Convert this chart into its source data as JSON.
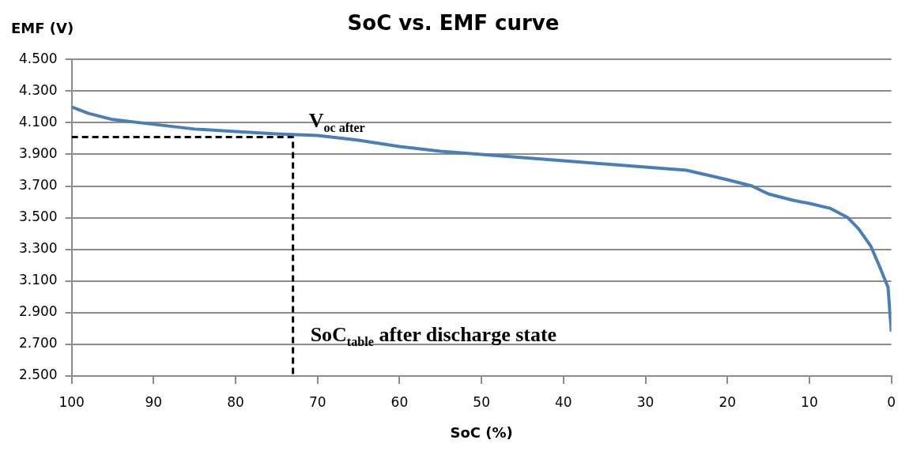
{
  "chart_data": {
    "type": "line",
    "title": "SoC vs. EMF curve",
    "xlabel": "SoC (%)",
    "ylabel": "EMF (V)",
    "xlim": [
      100,
      0
    ],
    "xticks": [
      100,
      90,
      80,
      70,
      60,
      50,
      40,
      30,
      20,
      10,
      0
    ],
    "ylim": [
      2.5,
      4.5
    ],
    "yticks": [
      {
        "value": 2.5,
        "label": "2.500"
      },
      {
        "value": 2.7,
        "label": "2.700"
      },
      {
        "value": 2.9,
        "label": "2.900"
      },
      {
        "value": 3.1,
        "label": "3.100"
      },
      {
        "value": 3.3,
        "label": "3.300"
      },
      {
        "value": 3.5,
        "label": "3.500"
      },
      {
        "value": 3.7,
        "label": "3.700"
      },
      {
        "value": 3.9,
        "label": "3.900"
      },
      {
        "value": 4.1,
        "label": "4.100"
      },
      {
        "value": 4.3,
        "label": "4.300"
      },
      {
        "value": 4.5,
        "label": "4.500"
      }
    ],
    "grid": "y",
    "legend": false,
    "marker": "none",
    "series": [
      {
        "color": "#4a7ebb",
        "line_style": "solid",
        "x": [
          100,
          98,
          95,
          90,
          85,
          80,
          75,
          70,
          65,
          60,
          55,
          50,
          45,
          40,
          35,
          30,
          25,
          20,
          17,
          15,
          12,
          10,
          7.5,
          5.3,
          4,
          2.5,
          1.5,
          0.4,
          0
        ],
        "values": [
          4.2,
          4.16,
          4.12,
          4.09,
          4.06,
          4.045,
          4.03,
          4.02,
          3.99,
          3.95,
          3.92,
          3.9,
          3.88,
          3.86,
          3.84,
          3.82,
          3.8,
          3.74,
          3.7,
          3.65,
          3.61,
          3.59,
          3.56,
          3.5,
          3.43,
          3.32,
          3.2,
          3.06,
          2.78
        ]
      },
      {
        "color": "#000000",
        "line_style": "dashed",
        "x": [
          100,
          73,
          73
        ],
        "values": [
          4.01,
          4.01,
          2.5
        ]
      }
    ],
    "annotations": [
      {
        "text": "V$_{oc after}$",
        "x": 73,
        "y": 4.01
      },
      {
        "text": "SoC$_{table}$ after discharge state",
        "x": 73,
        "y": 2.5
      }
    ]
  }
}
